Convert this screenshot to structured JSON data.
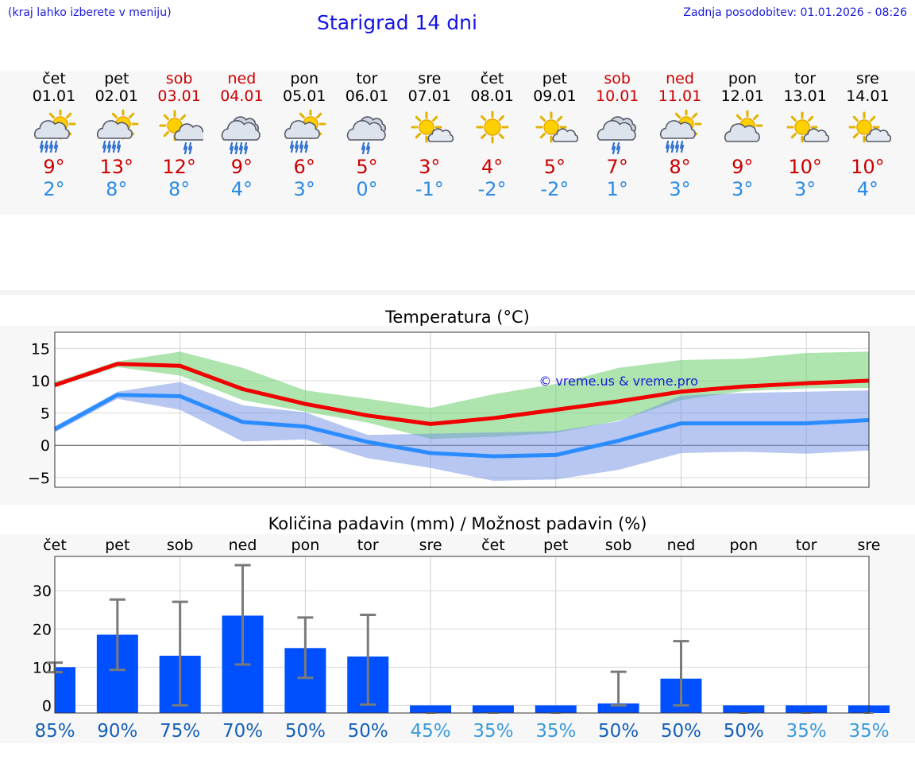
{
  "header": {
    "left_note": "(kraj lahko izberete v meniju)",
    "title": "Starigrad 14 dni",
    "updated": "Zadnja posodobitev: 01.01.2026 - 08:26"
  },
  "colors": {
    "weekend": "#cc0000",
    "tmax": "#cc0000",
    "tmin": "#2a8ae6",
    "bar": "#0050ff",
    "line_max": "#f00000",
    "line_min": "#2a8cff",
    "band_max": "#6bd06b",
    "band_min": "#6f8fe6"
  },
  "days": [
    {
      "name": "čet",
      "date": "01.01",
      "weekend": false,
      "icon": "sun-cloud-rain-icon",
      "tmax": "9°",
      "tmin": "2°"
    },
    {
      "name": "pet",
      "date": "02.01",
      "weekend": false,
      "icon": "sun-cloud-rain-icon",
      "tmax": "13°",
      "tmin": "8°"
    },
    {
      "name": "sob",
      "date": "03.01",
      "weekend": true,
      "icon": "sun-cloud-light-rain-icon",
      "tmax": "12°",
      "tmin": "8°"
    },
    {
      "name": "ned",
      "date": "04.01",
      "weekend": true,
      "icon": "cloud-rain-icon",
      "tmax": "9°",
      "tmin": "4°"
    },
    {
      "name": "pon",
      "date": "05.01",
      "weekend": false,
      "icon": "sun-cloud-rain-icon",
      "tmax": "6°",
      "tmin": "3°"
    },
    {
      "name": "tor",
      "date": "06.01",
      "weekend": false,
      "icon": "cloud-light-rain-icon",
      "tmax": "5°",
      "tmin": "0°"
    },
    {
      "name": "sre",
      "date": "07.01",
      "weekend": false,
      "icon": "sun-small-cloud-icon",
      "tmax": "3°",
      "tmin": "-1°"
    },
    {
      "name": "čet",
      "date": "08.01",
      "weekend": false,
      "icon": "sun-icon",
      "tmax": "4°",
      "tmin": "-2°"
    },
    {
      "name": "pet",
      "date": "09.01",
      "weekend": false,
      "icon": "sun-small-cloud-icon",
      "tmax": "5°",
      "tmin": "-2°"
    },
    {
      "name": "sob",
      "date": "10.01",
      "weekend": true,
      "icon": "cloud-light-rain-icon",
      "tmax": "7°",
      "tmin": "1°"
    },
    {
      "name": "ned",
      "date": "11.01",
      "weekend": true,
      "icon": "sun-cloud-rain-icon",
      "tmax": "8°",
      "tmin": "3°"
    },
    {
      "name": "pon",
      "date": "12.01",
      "weekend": false,
      "icon": "sun-cloud-icon",
      "tmax": "9°",
      "tmin": "3°"
    },
    {
      "name": "tor",
      "date": "13.01",
      "weekend": false,
      "icon": "sun-small-cloud-icon",
      "tmax": "10°",
      "tmin": "3°"
    },
    {
      "name": "sre",
      "date": "14.01",
      "weekend": false,
      "icon": "sun-small-cloud-icon",
      "tmax": "10°",
      "tmin": "4°"
    }
  ],
  "chart_data": [
    {
      "type": "line",
      "title": "Temperatura (°C)",
      "xlabel": "",
      "ylabel": "",
      "ylim": [
        -6.5,
        17.5
      ],
      "yticks": [
        -5,
        0,
        5,
        10,
        15
      ],
      "ytick_labels": [
        "−5",
        "0",
        "5",
        "10",
        "15"
      ],
      "x": [
        0,
        1,
        2,
        3,
        4,
        5,
        6,
        7,
        8,
        9,
        10,
        11,
        12,
        13
      ],
      "watermark": "© vreme.us & vreme.pro",
      "grid": true,
      "series": [
        {
          "name": "max",
          "values": [
            9.3,
            12.6,
            12.3,
            8.7,
            6.4,
            4.6,
            3.3,
            4.2,
            5.5,
            6.8,
            8.3,
            9.1,
            9.6,
            10.0
          ],
          "band_low": [
            9.0,
            12.1,
            10.8,
            7.0,
            5.2,
            3.5,
            1.0,
            1.3,
            1.9,
            3.8,
            7.0,
            8.4,
            8.8,
            8.9
          ],
          "band_high": [
            9.8,
            13.0,
            14.5,
            12.0,
            8.5,
            7.2,
            5.8,
            7.9,
            9.5,
            12.0,
            13.2,
            13.4,
            14.3,
            14.5
          ]
        },
        {
          "name": "min",
          "values": [
            2.5,
            7.8,
            7.6,
            3.6,
            2.9,
            0.5,
            -1.2,
            -1.7,
            -1.5,
            0.7,
            3.4,
            3.4,
            3.4,
            3.9
          ],
          "band_low": [
            2.0,
            7.2,
            5.5,
            0.6,
            0.9,
            -2.0,
            -3.5,
            -5.5,
            -5.3,
            -3.8,
            -1.2,
            -1.0,
            -1.3,
            -0.8
          ],
          "band_high": [
            2.9,
            8.3,
            9.8,
            6.2,
            5.1,
            1.6,
            1.8,
            2.0,
            2.2,
            3.7,
            7.7,
            8.1,
            8.3,
            8.5
          ]
        }
      ]
    },
    {
      "type": "bar",
      "title": "Količina padavin (mm) / Možnost padavin (%)",
      "categories": [
        "čet",
        "pet",
        "sob",
        "ned",
        "pon",
        "tor",
        "sre",
        "čet",
        "pet",
        "sob",
        "ned",
        "pon",
        "tor",
        "sre"
      ],
      "ylim": [
        -2,
        39
      ],
      "yticks": [
        0,
        10,
        20,
        30
      ],
      "values": [
        10.0,
        18.5,
        13.0,
        23.5,
        15.0,
        12.8,
        0,
        0,
        0,
        0.5,
        7.0,
        0,
        0,
        0
      ],
      "error_low": [
        8.7,
        9.3,
        0,
        10.7,
        7.2,
        0.2,
        0,
        0,
        0,
        0,
        0,
        0,
        0,
        0
      ],
      "error_high": [
        11.2,
        27.7,
        27.1,
        36.7,
        23.0,
        23.7,
        0,
        0,
        0,
        8.8,
        16.8,
        0,
        0,
        0
      ],
      "probabilities": [
        "85%",
        "90%",
        "75%",
        "70%",
        "50%",
        "50%",
        "45%",
        "35%",
        "35%",
        "50%",
        "50%",
        "50%",
        "35%",
        "35%"
      ]
    }
  ]
}
